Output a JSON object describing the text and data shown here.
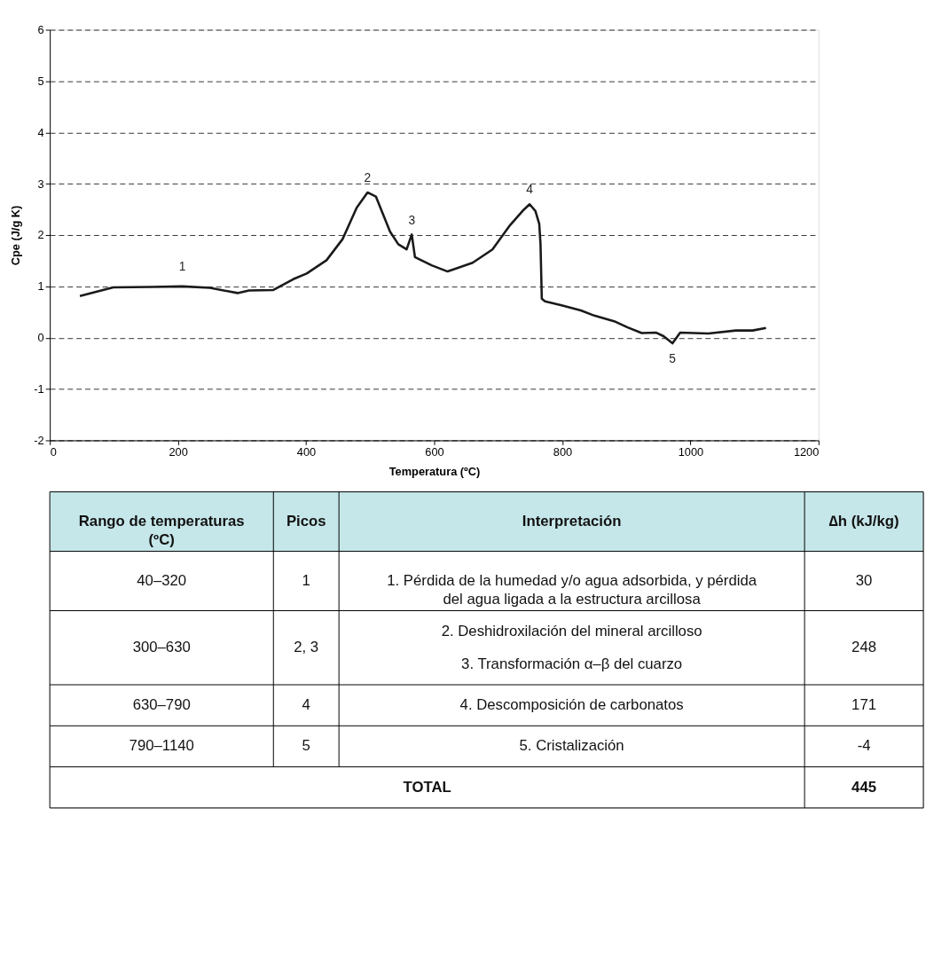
{
  "chart_data": [
    {
      "type": "line",
      "xlabel": "Temperatura (ºC)",
      "ylabel": "Cpe (J/g K)",
      "xlim": [
        0,
        1200
      ],
      "xticks": [
        0,
        200,
        400,
        600,
        800,
        1000,
        1200
      ],
      "ylim": [
        -2,
        6
      ],
      "yticks": [
        -2,
        -1,
        0,
        1,
        2,
        3,
        4,
        5,
        6
      ],
      "grid": "y",
      "marker": "none",
      "line_style": "solid",
      "series": [
        {
          "color": "#1a1a1a",
          "x": [
            47,
            99,
            159,
            207,
            250,
            293,
            311,
            349,
            380,
            401,
            432,
            457,
            479,
            496,
            509,
            531,
            544,
            557,
            565,
            570,
            596,
            621,
            660,
            691,
            717,
            738,
            749,
            758,
            764,
            766,
            768,
            773,
            799,
            829,
            850,
            881,
            902,
            924,
            946,
            958,
            972,
            984,
            1028,
            1071,
            1097,
            1118
          ],
          "values": [
            0.81,
            0.98,
            0.99,
            1.0,
            0.97,
            0.87,
            0.92,
            0.93,
            1.14,
            1.25,
            1.51,
            1.92,
            2.53,
            2.83,
            2.75,
            2.07,
            1.82,
            1.72,
            2.01,
            1.57,
            1.41,
            1.29,
            1.46,
            1.72,
            2.17,
            2.47,
            2.6,
            2.47,
            2.22,
            1.82,
            0.76,
            0.71,
            0.63,
            0.53,
            0.43,
            0.32,
            0.2,
            0.09,
            0.1,
            0.03,
            -0.11,
            0.1,
            0.08,
            0.14,
            0.14,
            0.19
          ]
        }
      ],
      "annotations": [
        {
          "text": "1",
          "x": 207,
          "y": 1.0
        },
        {
          "text": "2",
          "x": 496,
          "y": 2.83
        },
        {
          "text": "3",
          "x": 565,
          "y": 2.01
        },
        {
          "text": "4",
          "x": 749,
          "y": 2.6
        },
        {
          "text": "5",
          "x": 972,
          "y": -0.11
        }
      ]
    },
    {
      "type": "other",
      "color": "#c6e7ea",
      "categories": [
        "Rango de temperaturas (ºC)",
        "Picos",
        "Interpretación",
        "∆h (kJ/kg)"
      ],
      "cells": [
        [
          "40–320",
          "1",
          "1. Pérdida de la humedad y/o agua adsorbida, y pérdida del agua ligada a la estructura arcillosa",
          "30"
        ],
        [
          "300–630",
          "2, 3",
          [
            "2. Deshidroxilación del mineral arcilloso",
            "3. Transformación α–β del cuarzo"
          ],
          "248"
        ],
        [
          "630–790",
          "4",
          "4. Descomposición de carbonatos",
          "171"
        ],
        [
          "790–1140",
          "5",
          "5. Cristalización",
          "-4"
        ],
        [
          "TOTAL",
          null,
          null,
          "445"
        ]
      ]
    }
  ]
}
